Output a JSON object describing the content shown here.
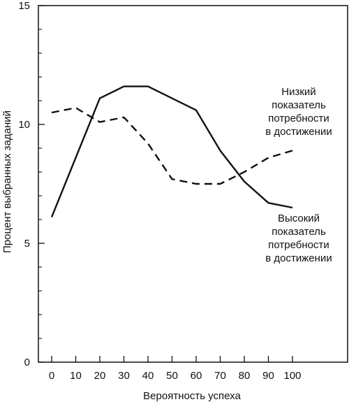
{
  "chart_data": {
    "type": "line",
    "title": "",
    "xlabel": "Вероятность успеха",
    "ylabel": "Процент выбранных заданий",
    "xlim": [
      0,
      100
    ],
    "ylim": [
      0,
      15
    ],
    "x_ticks": [
      0,
      10,
      20,
      30,
      40,
      50,
      60,
      70,
      80,
      90,
      100
    ],
    "x_tick_labels": [
      "0",
      "10",
      "20",
      "30",
      "40",
      "50",
      "60",
      "70",
      "80",
      "90",
      "100"
    ],
    "y_ticks": [
      0,
      5,
      10,
      15
    ],
    "y_tick_labels": [
      "0",
      "5",
      "10",
      "15"
    ],
    "grid": false,
    "series": [
      {
        "name": "Высокий показатель потребности в достижении",
        "label_lines": [
          "Высокий",
          "показатель",
          "потребности",
          "в достижении"
        ],
        "style": "solid",
        "color": "#111111",
        "x": [
          0,
          10,
          20,
          30,
          40,
          50,
          60,
          70,
          80,
          90,
          100
        ],
        "y": [
          6.1,
          8.6,
          11.1,
          11.6,
          11.6,
          11.1,
          10.6,
          8.9,
          7.6,
          6.7,
          6.5
        ]
      },
      {
        "name": "Низкий показатель потребности в достижении",
        "label_lines": [
          "Низкий",
          "показатель",
          "потребности",
          "в достижении"
        ],
        "style": "dashed",
        "color": "#111111",
        "x": [
          0,
          10,
          20,
          30,
          40,
          50,
          60,
          70,
          80,
          90,
          100
        ],
        "y": [
          10.5,
          10.7,
          10.1,
          10.3,
          9.2,
          7.7,
          7.5,
          7.5,
          8.0,
          8.6,
          8.9
        ]
      }
    ]
  }
}
